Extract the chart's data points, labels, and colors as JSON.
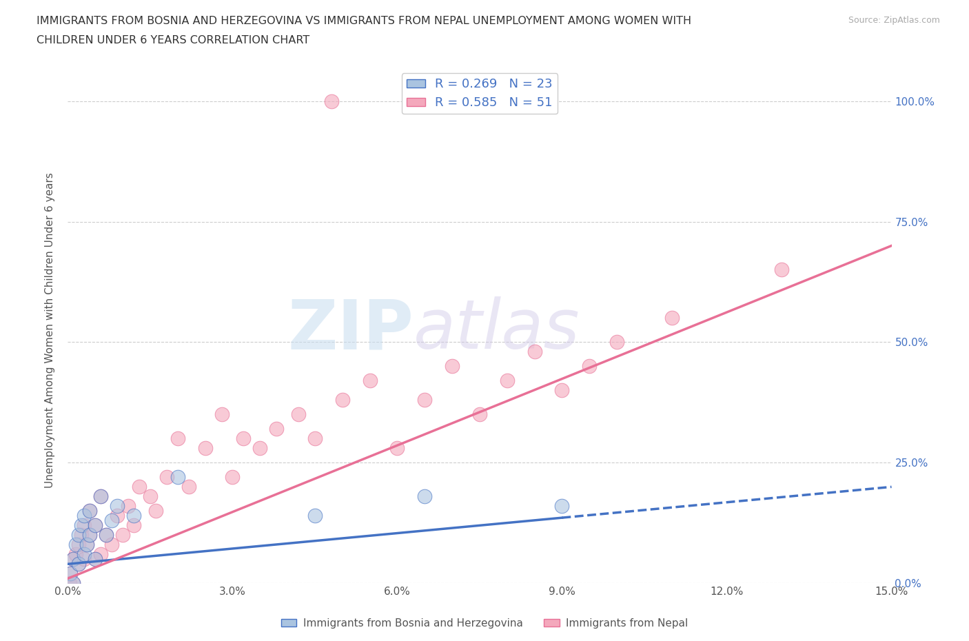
{
  "title_line1": "IMMIGRANTS FROM BOSNIA AND HERZEGOVINA VS IMMIGRANTS FROM NEPAL UNEMPLOYMENT AMONG WOMEN WITH",
  "title_line2": "CHILDREN UNDER 6 YEARS CORRELATION CHART",
  "source": "Source: ZipAtlas.com",
  "ylabel": "Unemployment Among Women with Children Under 6 years",
  "xlabel_bosnia": "Immigrants from Bosnia and Herzegovina",
  "xlabel_nepal": "Immigrants from Nepal",
  "xmin": 0.0,
  "xmax": 0.15,
  "ymin": 0.0,
  "ymax": 1.05,
  "yticks": [
    0.0,
    0.25,
    0.5,
    0.75,
    1.0
  ],
  "ytick_labels": [
    "0.0%",
    "25.0%",
    "50.0%",
    "75.0%",
    "100.0%"
  ],
  "xticks": [
    0.0,
    0.03,
    0.06,
    0.09,
    0.12,
    0.15
  ],
  "xtick_labels": [
    "0.0%",
    "3.0%",
    "6.0%",
    "9.0%",
    "12.0%",
    "15.0%"
  ],
  "R_bosnia": 0.269,
  "N_bosnia": 23,
  "R_nepal": 0.585,
  "N_nepal": 51,
  "color_bosnia": "#aac4e0",
  "color_nepal": "#f4a8bc",
  "line_color_bosnia": "#4472c4",
  "line_color_nepal": "#e87096",
  "watermark_zip": "ZIP",
  "watermark_atlas": "atlas",
  "background_color": "#ffffff",
  "bosnia_x": [
    0.0005,
    0.001,
    0.001,
    0.0015,
    0.002,
    0.002,
    0.0025,
    0.003,
    0.003,
    0.0035,
    0.004,
    0.004,
    0.005,
    0.005,
    0.006,
    0.007,
    0.008,
    0.009,
    0.012,
    0.02,
    0.045,
    0.065,
    0.09
  ],
  "bosnia_y": [
    0.02,
    0.0,
    0.05,
    0.08,
    0.04,
    0.1,
    0.12,
    0.06,
    0.14,
    0.08,
    0.1,
    0.15,
    0.05,
    0.12,
    0.18,
    0.1,
    0.13,
    0.16,
    0.14,
    0.22,
    0.14,
    0.18,
    0.16
  ],
  "nepal_x": [
    0.0003,
    0.0005,
    0.001,
    0.001,
    0.0015,
    0.002,
    0.002,
    0.0025,
    0.003,
    0.003,
    0.0035,
    0.004,
    0.004,
    0.005,
    0.005,
    0.006,
    0.006,
    0.007,
    0.008,
    0.009,
    0.01,
    0.011,
    0.012,
    0.013,
    0.015,
    0.016,
    0.018,
    0.02,
    0.022,
    0.025,
    0.028,
    0.03,
    0.032,
    0.035,
    0.038,
    0.042,
    0.045,
    0.05,
    0.055,
    0.06,
    0.065,
    0.07,
    0.075,
    0.08,
    0.085,
    0.09,
    0.095,
    0.1,
    0.11,
    0.13,
    0.048
  ],
  "nepal_y": [
    0.0,
    0.02,
    0.0,
    0.05,
    0.06,
    0.04,
    0.08,
    0.1,
    0.05,
    0.12,
    0.08,
    0.1,
    0.15,
    0.05,
    0.12,
    0.06,
    0.18,
    0.1,
    0.08,
    0.14,
    0.1,
    0.16,
    0.12,
    0.2,
    0.18,
    0.15,
    0.22,
    0.3,
    0.2,
    0.28,
    0.35,
    0.22,
    0.3,
    0.28,
    0.32,
    0.35,
    0.3,
    0.38,
    0.42,
    0.28,
    0.38,
    0.45,
    0.35,
    0.42,
    0.48,
    0.4,
    0.45,
    0.5,
    0.55,
    0.65,
    1.0
  ],
  "line_bosnia_x0": 0.0,
  "line_bosnia_y0": 0.04,
  "line_bosnia_x1": 0.15,
  "line_bosnia_y1": 0.2,
  "line_nepal_x0": 0.0,
  "line_nepal_y0": 0.01,
  "line_nepal_x1": 0.15,
  "line_nepal_y1": 0.7
}
